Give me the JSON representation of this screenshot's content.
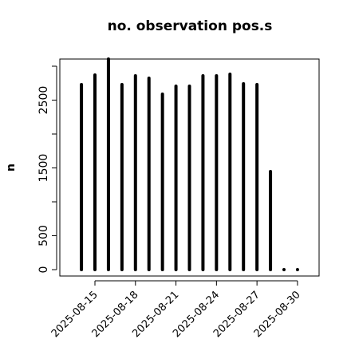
{
  "chart_data": {
    "type": "bar",
    "style": "spikes",
    "title": "no. observation pos.s",
    "ylabel": "n",
    "x": [
      "2025-08-14",
      "2025-08-15",
      "2025-08-16",
      "2025-08-17",
      "2025-08-18",
      "2025-08-19",
      "2025-08-20",
      "2025-08-21",
      "2025-08-22",
      "2025-08-23",
      "2025-08-24",
      "2025-08-25",
      "2025-08-26",
      "2025-08-27",
      "2025-08-28",
      "2025-08-29",
      "2025-08-30"
    ],
    "values": [
      2729,
      2870,
      3106,
      2729,
      2859,
      2824,
      2588,
      2706,
      2706,
      2859,
      2859,
      2882,
      2741,
      2729,
      1447,
      0,
      0
    ],
    "color": "#000000",
    "ylim": [
      -94,
      3106
    ],
    "yticks": [
      0,
      500,
      1500,
      2500
    ],
    "yminor_ticks": [
      1000,
      2000,
      3000
    ],
    "xticks": [
      "2025-08-15",
      "2025-08-18",
      "2025-08-21",
      "2025-08-24",
      "2025-08-27",
      "2025-08-30"
    ],
    "xtick_colors": [
      "#000000",
      "#000000",
      "#228b22",
      "#000000",
      "#000000",
      "#000000"
    ]
  }
}
